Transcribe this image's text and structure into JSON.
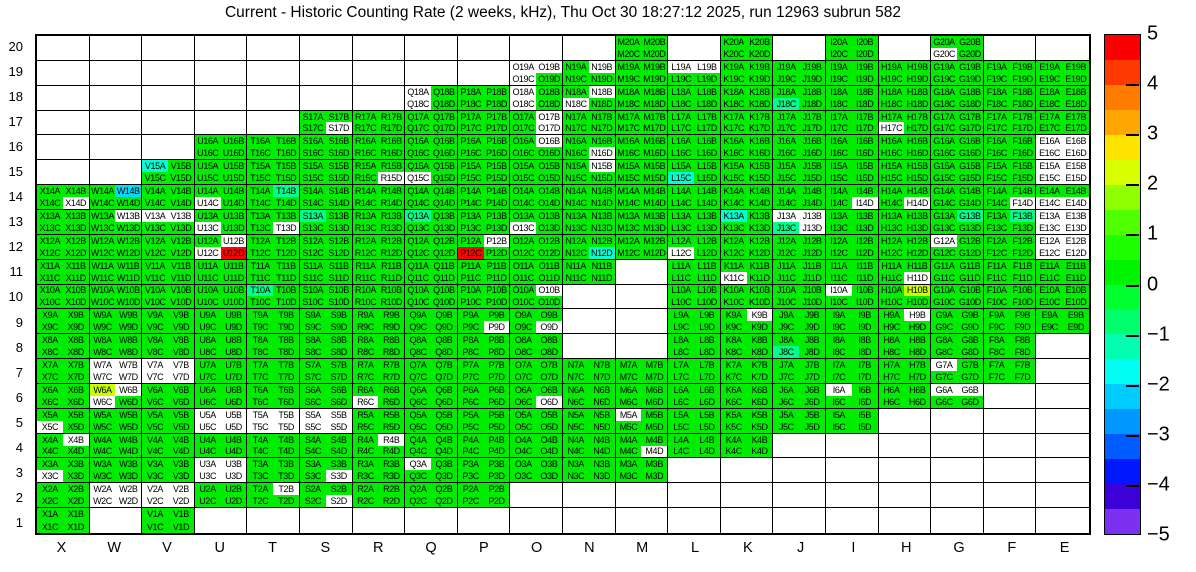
{
  "title": "Current - Historic Counting Rate (2 weeks, kHz), Thu Oct 30 18:27:12 2025, run 12963 subrun 582",
  "chart_data": {
    "type": "heatmap",
    "x_categories": [
      "X",
      "W",
      "V",
      "U",
      "T",
      "S",
      "R",
      "Q",
      "P",
      "O",
      "N",
      "M",
      "L",
      "K",
      "J",
      "I",
      "H",
      "G",
      "F",
      "E"
    ],
    "y_categories": [
      "20",
      "19",
      "18",
      "17",
      "16",
      "15",
      "14",
      "13",
      "12",
      "11",
      "10",
      "9",
      "8",
      "7",
      "6",
      "5",
      "4",
      "3",
      "2",
      "1"
    ],
    "value_range": [
      -5,
      5
    ],
    "cell_channel_suffixes": [
      "A",
      "B",
      "C",
      "D"
    ],
    "palette": {
      "g": "#00ec00",
      "m": "#00ff8c",
      "t": "#00ffd2",
      "c": "#00dcff",
      "y": "#cbff00",
      "r": "#ff0000",
      "w": "#ffffff"
    },
    "cells": {
      "M20": "gggg",
      "K20": "gggg",
      "I20": "gggg",
      "G20": "ggwg",
      "O19": "wwwg",
      "N19": "gwgg",
      "M19": "gggg",
      "L19": "wwgg",
      "K19": "gggg",
      "J19": "gggg",
      "I19": "gggg",
      "H19": "gggg",
      "G19": "gggg",
      "F19": "gggg",
      "E19": "gggg",
      "Q18": "wgwg",
      "P18": "gggg",
      "O18": "wgwg",
      "N18": "gwwg",
      "M18": "gggg",
      "L18": "gggg",
      "K18": "gggg",
      "J18": "ggmg",
      "I18": "gggg",
      "H18": "gggg",
      "G18": "gggg",
      "F18": "gggg",
      "E18": "gggg",
      "S17": "gggw",
      "R17": "gggg",
      "Q17": "gggg",
      "P17": "gggg",
      "O17": "gwgw",
      "N17": "gggg",
      "M17": "gggg",
      "L17": "gggg",
      "K17": "gggg",
      "J17": "gggg",
      "I17": "gggg",
      "H17": "ggwg",
      "G17": "gggg",
      "F17": "gggg",
      "E17": "gggg",
      "U16": "gggg",
      "T16": "gggg",
      "S16": "gggg",
      "R16": "gggg",
      "Q16": "gggg",
      "P16": "gggg",
      "O16": "gwgg",
      "N16": "gggw",
      "M16": "gggg",
      "L16": "gggg",
      "K16": "gggg",
      "J16": "gggg",
      "I16": "gggg",
      "H16": "gggg",
      "G16": "gggg",
      "F16": "gggg",
      "E16": "wwww",
      "V15": "tggg",
      "U15": "gggg",
      "T15": "gggg",
      "S15": "gggg",
      "R15": "gggw",
      "Q15": "ggwg",
      "P15": "gggg",
      "O15": "gggg",
      "N15": "gwgg",
      "M15": "gggg",
      "L15": "ggtg",
      "K15": "gggg",
      "J15": "gggg",
      "I15": "gggg",
      "H15": "gggg",
      "G15": "gggg",
      "F15": "gggg",
      "E15": "wwww",
      "X14": "gggw",
      "W14": "gcgg",
      "V14": "gggg",
      "U14": "ggwg",
      "T14": "gmgg",
      "S14": "gggg",
      "R14": "gggg",
      "Q14": "gggg",
      "P14": "gggg",
      "O14": "gggg",
      "N14": "gggg",
      "M14": "gggg",
      "L14": "gggg",
      "K14": "gggg",
      "J14": "gggg",
      "I14": "gggw",
      "H14": "gggw",
      "G14": "gggg",
      "F14": "gggw",
      "E14": "ggww",
      "X13": "gggg",
      "W13": "gwgg",
      "V13": "wwgg",
      "U13": "ggwg",
      "T13": "gggw",
      "S13": "mggg",
      "R13": "gggg",
      "Q13": "mggg",
      "P13": "gggg",
      "O13": "ggwg",
      "N13": "gggg",
      "M13": "gggg",
      "L13": "gggg",
      "K13": "tggg",
      "J13": "wwmw",
      "I13": "gggg",
      "H13": "gggg",
      "G13": "gmgg",
      "F13": "gmgg",
      "E13": "wwww",
      "X12": "gggg",
      "W12": "gggg",
      "V12": "gggg",
      "U12": "gwwr",
      "T12": "gggg",
      "S12": "gggg",
      "R12": "gggg",
      "Q12": "gggg",
      "P12": "gwrg",
      "O12": "gggg",
      "N12": "gggt",
      "M12": "gggg",
      "L12": "ggwg",
      "K12": "gggg",
      "J12": "gggg",
      "I12": "gggg",
      "H12": "gggg",
      "G12": "wggg",
      "F12": "gggg",
      "E12": "wwww",
      "X11": "gggg",
      "W11": "gggg",
      "V11": "gggg",
      "U11": "gggg",
      "T11": "gggg",
      "S11": "gggg",
      "R11": "gggg",
      "Q11": "gggg",
      "P11": "gggg",
      "O11": "gggg",
      "N11": "gggg",
      "L11": "gggg",
      "K11": "ggwg",
      "J11": "gggg",
      "I11": "gggg",
      "H11": "gggw",
      "G11": "gggg",
      "F11": "gggg",
      "E11": "gggg",
      "X10": "gggg",
      "W10": "gggg",
      "V10": "gggg",
      "U10": "gggg",
      "T10": "mggg",
      "S10": "gggg",
      "R10": "gggg",
      "Q10": "gggg",
      "P10": "gggg",
      "O10": "gwgg",
      "L10": "gggg",
      "K10": "gggg",
      "J10": "gggg",
      "I10": "wggg",
      "H10": "gygg",
      "G10": "gggg",
      "F10": "gggg",
      "E10": "gggg",
      "X9": "gggg",
      "W9": "gggg",
      "V9": "gggg",
      "U9": "gggg",
      "T9": "gggg",
      "S9": "gggg",
      "R9": "gggg",
      "Q9": "gggg",
      "P9": "gggw",
      "O9": "gggw",
      "L9": "gggg",
      "K9": "gwgg",
      "J9": "gggg",
      "I9": "gggg",
      "H9": "gwgg",
      "G9": "gggg",
      "F9": "gggg",
      "E9": "gggg",
      "X8": "gggg",
      "W8": "gggg",
      "V8": "gggg",
      "U8": "gggg",
      "T8": "gggg",
      "S8": "gggg",
      "R8": "gggg",
      "Q8": "gggg",
      "P8": "gggg",
      "O8": "gggg",
      "L8": "gggg",
      "K8": "gggg",
      "J8": "ggmg",
      "I8": "gggg",
      "H8": "gggg",
      "G8": "gggg",
      "F8": "gggg",
      "X7": "gggg",
      "W7": "wwww",
      "V7": "wwww",
      "U7": "gggg",
      "T7": "gggg",
      "S7": "gggg",
      "R7": "gggg",
      "Q7": "gggg",
      "P7": "gggg",
      "O7": "gggg",
      "N7": "gggg",
      "M7": "gggg",
      "L7": "gggg",
      "K7": "gggg",
      "J7": "gggg",
      "I7": "gggg",
      "H7": "gggg",
      "G7": "wggg",
      "F7": "gggg",
      "X6": "gggg",
      "W6": "ywwg",
      "V6": "gggg",
      "U6": "gggg",
      "T6": "gggg",
      "S6": "gggg",
      "R6": "ggwg",
      "Q6": "gggg",
      "P6": "gggg",
      "O6": "gggw",
      "N6": "gggg",
      "M6": "gggg",
      "L6": "gggg",
      "K6": "gggg",
      "J6": "gggg",
      "I6": "wggg",
      "H6": "gggg",
      "G6": "wwgg",
      "X5": "ggwg",
      "W5": "gggg",
      "V5": "gggg",
      "U5": "wwww",
      "T5": "wwww",
      "S5": "wwww",
      "R5": "gggg",
      "Q5": "gggg",
      "P5": "gggg",
      "O5": "gggg",
      "N5": "gggg",
      "M5": "wggg",
      "L5": "gggg",
      "K5": "gggg",
      "J5": "gggg",
      "I5": "gggg",
      "X4": "gwgg",
      "W4": "gggg",
      "V4": "gggg",
      "U4": "gggg",
      "T4": "gggg",
      "S4": "gggg",
      "R4": "gwgg",
      "Q4": "gggg",
      "P4": "gggg",
      "O4": "gggg",
      "N4": "gggg",
      "M4": "gggw",
      "L4": "gggg",
      "K4": "gggg",
      "X3": "ggwg",
      "W3": "gggg",
      "V3": "gggg",
      "U3": "wwww",
      "T3": "gggg",
      "S3": "gggw",
      "R3": "gggg",
      "Q3": "wggg",
      "P3": "gggg",
      "O3": "gggg",
      "N3": "gggg",
      "M3": "gggg",
      "X2": "gggg",
      "W2": "wwww",
      "V2": "wwww",
      "U2": "gggg",
      "T2": "gwgg",
      "S2": "gggw",
      "R2": "gggg",
      "Q2": "gggg",
      "P2": "gggg",
      "X1": "gggg",
      "V1": "gggg"
    },
    "colorbar": {
      "tick_labels": [
        "5",
        "4",
        "3",
        "2",
        "1",
        "0",
        "−1",
        "−2",
        "−3",
        "−4",
        "−5"
      ],
      "band_colors": [
        "#fa0000",
        "#ff3a00",
        "#ff7c00",
        "#ffa700",
        "#ffe400",
        "#d8ff00",
        "#90ff00",
        "#50ff00",
        "#1eff00",
        "#00f400",
        "#00ff2e",
        "#00ff6c",
        "#00ffb0",
        "#00fff2",
        "#00ccff",
        "#0098ff",
        "#005cff",
        "#0018ff",
        "#3c00d8",
        "#7c30f0"
      ]
    }
  }
}
